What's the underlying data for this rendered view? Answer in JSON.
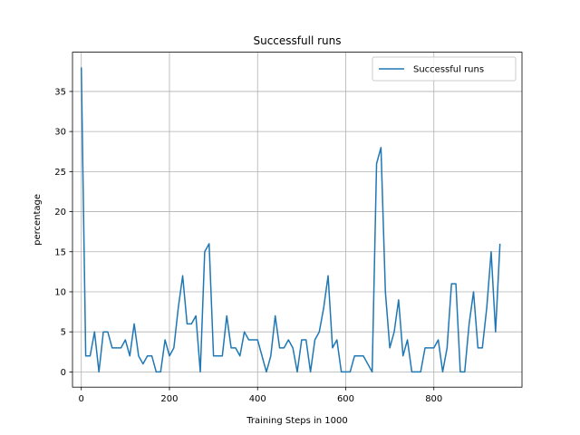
{
  "chart_data": {
    "type": "line",
    "title": "Successfull runs",
    "xlabel": "Training Steps in 1000",
    "ylabel": "percentage",
    "xlim": [
      -20,
      1000
    ],
    "ylim": [
      -1.9,
      39.9
    ],
    "xticks": [
      0,
      200,
      400,
      600,
      800
    ],
    "yticks": [
      0,
      5,
      10,
      15,
      20,
      25,
      30,
      35
    ],
    "grid": true,
    "legend_position": "top-right",
    "series": [
      {
        "name": "Successful runs",
        "color": "#1f77b4",
        "x": [
          0,
          10,
          20,
          30,
          40,
          50,
          60,
          70,
          80,
          90,
          100,
          110,
          120,
          130,
          140,
          150,
          160,
          170,
          180,
          190,
          200,
          210,
          220,
          230,
          240,
          250,
          260,
          270,
          280,
          290,
          300,
          310,
          320,
          330,
          340,
          350,
          360,
          370,
          380,
          390,
          400,
          410,
          420,
          430,
          440,
          450,
          460,
          470,
          480,
          490,
          500,
          510,
          520,
          530,
          540,
          550,
          560,
          570,
          580,
          590,
          600,
          610,
          620,
          630,
          640,
          650,
          660,
          670,
          680,
          690,
          700,
          710,
          720,
          730,
          740,
          750,
          760,
          770,
          780,
          790,
          800,
          810,
          820,
          830,
          840,
          850,
          860,
          870,
          880,
          890,
          900,
          910,
          920,
          930,
          940,
          950
        ],
        "values": [
          38,
          2,
          2,
          5,
          0,
          5,
          5,
          3,
          3,
          3,
          4,
          2,
          6,
          2,
          1,
          2,
          2,
          0,
          0,
          4,
          2,
          3,
          8,
          12,
          6,
          6,
          7,
          0,
          15,
          16,
          2,
          2,
          2,
          7,
          3,
          3,
          2,
          5,
          4,
          4,
          4,
          2,
          0,
          2,
          7,
          3,
          3,
          4,
          3,
          0,
          4,
          4,
          0,
          4,
          5,
          8,
          12,
          3,
          4,
          0,
          0,
          0,
          2,
          2,
          2,
          1,
          0,
          26,
          28,
          10,
          3,
          5,
          9,
          2,
          4,
          0,
          0,
          0,
          3,
          3,
          3,
          4,
          0,
          3,
          11,
          11,
          0,
          0,
          6,
          10,
          3,
          3,
          8,
          15,
          5,
          16
        ]
      }
    ]
  }
}
